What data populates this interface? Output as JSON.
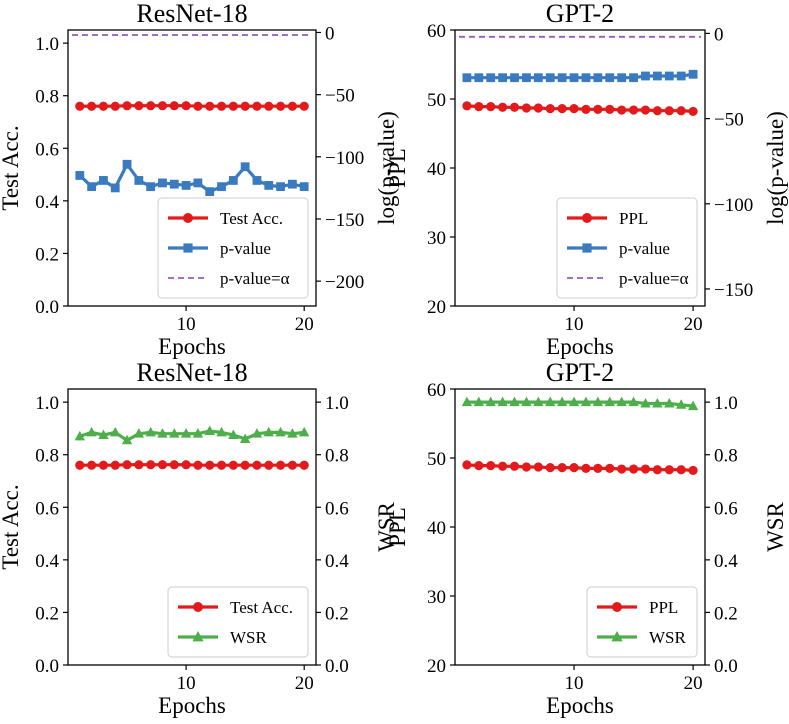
{
  "chart_data": [
    {
      "type": "line",
      "title": "ResNet-18",
      "xlabel": "Epochs",
      "ylabel": "Test Acc.",
      "y2label": "log(p-value)",
      "x": [
        1,
        2,
        3,
        4,
        5,
        6,
        7,
        8,
        9,
        10,
        11,
        12,
        13,
        14,
        15,
        16,
        17,
        18,
        19,
        20
      ],
      "xlim": [
        0,
        21
      ],
      "ylim": [
        0,
        1.05
      ],
      "y2lim": [
        -220,
        2
      ],
      "xticks": [
        10,
        20
      ],
      "yticks": [
        0.0,
        0.2,
        0.4,
        0.6,
        0.8,
        1.0
      ],
      "y2ticks": [
        -200,
        -150,
        -100,
        -50,
        0
      ],
      "xtick_labels": [
        "10",
        "20"
      ],
      "ytick_labels": [
        "0.0",
        "0.2",
        "0.4",
        "0.6",
        "0.8",
        "1.0"
      ],
      "y2tick_labels": [
        "−200",
        "−150",
        "−100",
        "−50",
        "0"
      ],
      "legend_position": "lower-right",
      "series": [
        {
          "name": "Test Acc.",
          "axis": "left",
          "color": "#e31a1c",
          "marker": "circle",
          "values": [
            0.76,
            0.76,
            0.76,
            0.76,
            0.762,
            0.762,
            0.762,
            0.762,
            0.762,
            0.762,
            0.76,
            0.76,
            0.76,
            0.76,
            0.76,
            0.76,
            0.76,
            0.76,
            0.76,
            0.76
          ]
        },
        {
          "name": "p-value",
          "axis": "right",
          "color": "#3a7bbf",
          "marker": "square",
          "values": [
            -115,
            -124,
            -119,
            -125,
            -106,
            -119,
            -124,
            -121,
            -122,
            -123,
            -121,
            -128,
            -124,
            -119,
            -108,
            -119,
            -123,
            -124,
            -122,
            -124
          ]
        },
        {
          "name": "p-value=α",
          "axis": "right",
          "color": "#9b59b6",
          "dashed": true,
          "constant": -2
        }
      ]
    },
    {
      "type": "line",
      "title": "GPT-2",
      "xlabel": "Epochs",
      "ylabel": "PPL",
      "y2label": "log(p-value)",
      "x": [
        1,
        2,
        3,
        4,
        5,
        6,
        7,
        8,
        9,
        10,
        11,
        12,
        13,
        14,
        15,
        16,
        17,
        18,
        19,
        20
      ],
      "xlim": [
        0,
        21
      ],
      "ylim": [
        20,
        60
      ],
      "y2lim": [
        -160,
        2
      ],
      "xticks": [
        10,
        20
      ],
      "yticks": [
        20,
        30,
        40,
        50,
        60
      ],
      "y2ticks": [
        -150,
        -100,
        -50,
        0
      ],
      "xtick_labels": [
        "10",
        "20"
      ],
      "ytick_labels": [
        "20",
        "30",
        "40",
        "50",
        "60"
      ],
      "y2tick_labels": [
        "−150",
        "−100",
        "−50",
        "0"
      ],
      "legend_position": "lower-right",
      "series": [
        {
          "name": "PPL",
          "axis": "left",
          "color": "#e31a1c",
          "marker": "circle",
          "values": [
            49.0,
            48.9,
            48.9,
            48.8,
            48.8,
            48.7,
            48.7,
            48.6,
            48.6,
            48.6,
            48.5,
            48.5,
            48.5,
            48.4,
            48.4,
            48.4,
            48.3,
            48.3,
            48.3,
            48.2
          ]
        },
        {
          "name": "p-value",
          "axis": "right",
          "color": "#3a7bbf",
          "marker": "square",
          "values": [
            -26,
            -26,
            -26,
            -26,
            -26,
            -26,
            -26,
            -26,
            -26,
            -26,
            -26,
            -26,
            -26,
            -26,
            -26,
            -25,
            -25,
            -25,
            -25,
            -24
          ]
        },
        {
          "name": "p-value=α",
          "axis": "right",
          "color": "#9b59b6",
          "dashed": true,
          "constant": -2
        }
      ]
    },
    {
      "type": "line",
      "title": "ResNet-18",
      "xlabel": "Epochs",
      "ylabel": "Test Acc.",
      "y2label": "WSR",
      "x": [
        1,
        2,
        3,
        4,
        5,
        6,
        7,
        8,
        9,
        10,
        11,
        12,
        13,
        14,
        15,
        16,
        17,
        18,
        19,
        20
      ],
      "xlim": [
        0,
        21
      ],
      "ylim": [
        0,
        1.05
      ],
      "y2lim": [
        0,
        1.05
      ],
      "xticks": [
        10,
        20
      ],
      "yticks": [
        0.0,
        0.2,
        0.4,
        0.6,
        0.8,
        1.0
      ],
      "y2ticks": [
        0.0,
        0.2,
        0.4,
        0.6,
        0.8,
        1.0
      ],
      "xtick_labels": [
        "10",
        "20"
      ],
      "ytick_labels": [
        "0.0",
        "0.2",
        "0.4",
        "0.6",
        "0.8",
        "1.0"
      ],
      "y2tick_labels": [
        "0.0",
        "0.2",
        "0.4",
        "0.6",
        "0.8",
        "1.0"
      ],
      "legend_position": "lower-right",
      "series": [
        {
          "name": "Test Acc.",
          "axis": "left",
          "color": "#e31a1c",
          "marker": "circle",
          "values": [
            0.76,
            0.76,
            0.76,
            0.76,
            0.762,
            0.762,
            0.762,
            0.762,
            0.762,
            0.762,
            0.76,
            0.76,
            0.76,
            0.76,
            0.76,
            0.76,
            0.76,
            0.76,
            0.76,
            0.76
          ]
        },
        {
          "name": "WSR",
          "axis": "right",
          "color": "#4daf4a",
          "marker": "triangle",
          "values": [
            0.87,
            0.885,
            0.875,
            0.885,
            0.855,
            0.88,
            0.885,
            0.88,
            0.88,
            0.88,
            0.88,
            0.89,
            0.885,
            0.875,
            0.86,
            0.88,
            0.885,
            0.885,
            0.88,
            0.885
          ]
        }
      ]
    },
    {
      "type": "line",
      "title": "GPT-2",
      "xlabel": "Epochs",
      "ylabel": "PPL",
      "y2label": "WSR",
      "x": [
        1,
        2,
        3,
        4,
        5,
        6,
        7,
        8,
        9,
        10,
        11,
        12,
        13,
        14,
        15,
        16,
        17,
        18,
        19,
        20
      ],
      "xlim": [
        0,
        21
      ],
      "ylim": [
        20,
        60
      ],
      "y2lim": [
        0,
        1.05
      ],
      "xticks": [
        10,
        20
      ],
      "yticks": [
        20,
        30,
        40,
        50,
        60
      ],
      "y2ticks": [
        0.0,
        0.2,
        0.4,
        0.6,
        0.8,
        1.0
      ],
      "xtick_labels": [
        "10",
        "20"
      ],
      "ytick_labels": [
        "20",
        "30",
        "40",
        "50",
        "60"
      ],
      "y2tick_labels": [
        "0.0",
        "0.2",
        "0.4",
        "0.6",
        "0.8",
        "1.0"
      ],
      "legend_position": "lower-right",
      "series": [
        {
          "name": "PPL",
          "axis": "left",
          "color": "#e31a1c",
          "marker": "circle",
          "values": [
            49.0,
            48.9,
            48.9,
            48.8,
            48.8,
            48.7,
            48.7,
            48.6,
            48.6,
            48.6,
            48.5,
            48.5,
            48.5,
            48.4,
            48.4,
            48.4,
            48.3,
            48.3,
            48.3,
            48.2
          ]
        },
        {
          "name": "WSR",
          "axis": "right",
          "color": "#4daf4a",
          "marker": "triangle",
          "values": [
            1.0,
            1.0,
            1.0,
            1.0,
            1.0,
            1.0,
            1.0,
            1.0,
            1.0,
            1.0,
            1.0,
            1.0,
            1.0,
            1.0,
            1.0,
            0.995,
            0.995,
            0.995,
            0.99,
            0.985
          ]
        }
      ]
    }
  ]
}
